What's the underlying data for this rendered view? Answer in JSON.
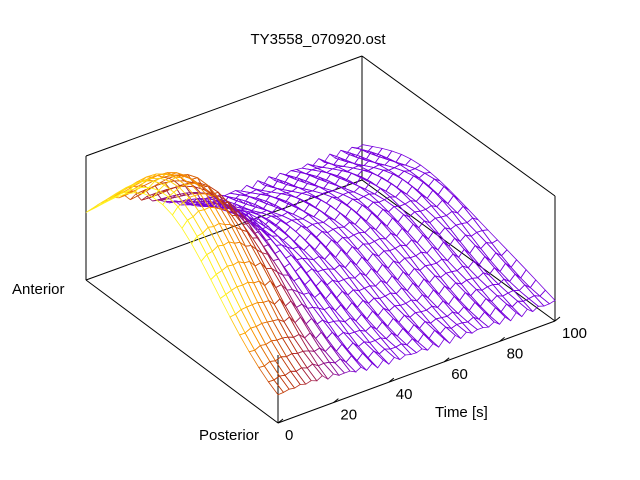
{
  "chart_data": {
    "type": "surface",
    "title": "TY3558_070920.ost",
    "x_axis": {
      "label": "Time [s]",
      "ticks": [
        0,
        20,
        40,
        60,
        80,
        100
      ],
      "range": [
        0,
        100
      ]
    },
    "y_axis": {
      "start_label": "Anterior",
      "end_label": "Posterior"
    },
    "z_axis": {
      "ticks_shown": false
    },
    "colormap": [
      "#7700dd",
      "#b8300f",
      "#ff9c00",
      "#ffff20"
    ],
    "surface_model": {
      "description_free": true,
      "time_samples": 51,
      "position_samples": 21,
      "peak_time": 8,
      "baseline_time": 45
    }
  }
}
